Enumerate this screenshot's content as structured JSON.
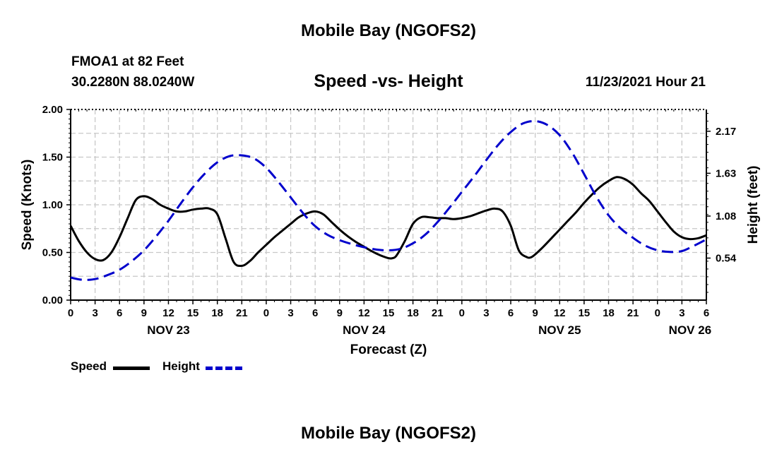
{
  "header": {
    "title": "Mobile Bay (NGOFS2)",
    "station": "FMOA1 at 82 Feet",
    "coords": "30.2280N  88.0240W",
    "subtitle": "Speed -vs- Height",
    "datetime": "11/23/2021 Hour 21"
  },
  "footer": {
    "title": "Mobile Bay (NGOFS2)"
  },
  "legend": {
    "speed_label": "Speed",
    "height_label": "Height"
  },
  "colors": {
    "speed": "#000000",
    "height": "#0000cc",
    "grid": "#c8c8c8"
  },
  "chart_data": {
    "type": "line",
    "title": "Speed -vs- Height",
    "xlabel": "Forecast (Z)",
    "ylabel": "Speed (Knots)",
    "y2label": "Height (feet)",
    "x_range_hours": [
      0,
      78
    ],
    "ylim": [
      0,
      2.0
    ],
    "y2lim": [
      0,
      2.45
    ],
    "x_ticks": [
      {
        "h": 0,
        "label": "0"
      },
      {
        "h": 3,
        "label": "3"
      },
      {
        "h": 6,
        "label": "6"
      },
      {
        "h": 9,
        "label": "9"
      },
      {
        "h": 12,
        "label": "12"
      },
      {
        "h": 15,
        "label": "15"
      },
      {
        "h": 18,
        "label": "18"
      },
      {
        "h": 21,
        "label": "21"
      },
      {
        "h": 24,
        "label": "0"
      },
      {
        "h": 27,
        "label": "3"
      },
      {
        "h": 30,
        "label": "6"
      },
      {
        "h": 33,
        "label": "9"
      },
      {
        "h": 36,
        "label": "12"
      },
      {
        "h": 39,
        "label": "15"
      },
      {
        "h": 42,
        "label": "18"
      },
      {
        "h": 45,
        "label": "21"
      },
      {
        "h": 48,
        "label": "0"
      },
      {
        "h": 51,
        "label": "3"
      },
      {
        "h": 54,
        "label": "6"
      },
      {
        "h": 57,
        "label": "9"
      },
      {
        "h": 60,
        "label": "12"
      },
      {
        "h": 63,
        "label": "15"
      },
      {
        "h": 66,
        "label": "18"
      },
      {
        "h": 69,
        "label": "21"
      },
      {
        "h": 72,
        "label": "0"
      },
      {
        "h": 75,
        "label": "3"
      },
      {
        "h": 78,
        "label": "6"
      }
    ],
    "date_labels": [
      {
        "h": 12,
        "label": "NOV 23"
      },
      {
        "h": 36,
        "label": "NOV 24"
      },
      {
        "h": 60,
        "label": "NOV 25"
      },
      {
        "h": 76,
        "label": "NOV 26"
      }
    ],
    "y_ticks": [
      {
        "v": 0.0,
        "label": "0.00"
      },
      {
        "v": 0.5,
        "label": "0.50"
      },
      {
        "v": 1.0,
        "label": "1.00"
      },
      {
        "v": 1.5,
        "label": "1.50"
      },
      {
        "v": 2.0,
        "label": "2.00"
      }
    ],
    "y2_ticks": [
      {
        "v": 0.54,
        "label": "0.54"
      },
      {
        "v": 1.08,
        "label": "1.08"
      },
      {
        "v": 1.63,
        "label": "1.63"
      },
      {
        "v": 2.17,
        "label": "2.17"
      }
    ],
    "series": [
      {
        "name": "Speed",
        "axis": "left",
        "style": "solid",
        "points": [
          [
            0,
            0.78
          ],
          [
            1,
            0.62
          ],
          [
            2,
            0.5
          ],
          [
            3,
            0.43
          ],
          [
            4,
            0.42
          ],
          [
            5,
            0.5
          ],
          [
            6,
            0.66
          ],
          [
            7,
            0.86
          ],
          [
            8,
            1.05
          ],
          [
            9,
            1.09
          ],
          [
            10,
            1.06
          ],
          [
            11,
            1.0
          ],
          [
            12,
            0.96
          ],
          [
            13,
            0.93
          ],
          [
            14,
            0.93
          ],
          [
            15,
            0.95
          ],
          [
            16,
            0.96
          ],
          [
            17,
            0.96
          ],
          [
            18,
            0.9
          ],
          [
            19,
            0.65
          ],
          [
            20,
            0.4
          ],
          [
            21,
            0.36
          ],
          [
            22,
            0.41
          ],
          [
            23,
            0.5
          ],
          [
            24,
            0.58
          ],
          [
            25,
            0.66
          ],
          [
            26,
            0.73
          ],
          [
            27,
            0.8
          ],
          [
            28,
            0.87
          ],
          [
            29,
            0.91
          ],
          [
            30,
            0.93
          ],
          [
            31,
            0.9
          ],
          [
            32,
            0.82
          ],
          [
            33,
            0.74
          ],
          [
            34,
            0.67
          ],
          [
            35,
            0.61
          ],
          [
            36,
            0.56
          ],
          [
            37,
            0.51
          ],
          [
            38,
            0.47
          ],
          [
            39,
            0.44
          ],
          [
            39.5,
            0.44
          ],
          [
            40,
            0.47
          ],
          [
            41,
            0.62
          ],
          [
            42,
            0.8
          ],
          [
            43,
            0.87
          ],
          [
            44,
            0.87
          ],
          [
            45,
            0.86
          ],
          [
            46,
            0.86
          ],
          [
            47,
            0.85
          ],
          [
            48,
            0.86
          ],
          [
            49,
            0.88
          ],
          [
            50,
            0.91
          ],
          [
            51,
            0.94
          ],
          [
            52,
            0.96
          ],
          [
            53,
            0.93
          ],
          [
            54,
            0.78
          ],
          [
            55,
            0.52
          ],
          [
            56,
            0.45
          ],
          [
            56.5,
            0.45
          ],
          [
            57,
            0.48
          ],
          [
            58,
            0.56
          ],
          [
            59,
            0.65
          ],
          [
            60,
            0.74
          ],
          [
            61,
            0.83
          ],
          [
            62,
            0.92
          ],
          [
            63,
            1.02
          ],
          [
            64,
            1.11
          ],
          [
            65,
            1.19
          ],
          [
            66,
            1.25
          ],
          [
            67,
            1.29
          ],
          [
            68,
            1.27
          ],
          [
            69,
            1.21
          ],
          [
            70,
            1.12
          ],
          [
            71,
            1.04
          ],
          [
            72,
            0.93
          ],
          [
            73,
            0.82
          ],
          [
            74,
            0.72
          ],
          [
            75,
            0.66
          ],
          [
            76,
            0.64
          ],
          [
            77,
            0.65
          ],
          [
            78,
            0.68
          ]
        ]
      },
      {
        "name": "Height",
        "axis": "right",
        "style": "dashed",
        "points": [
          [
            0,
            0.29
          ],
          [
            1.5,
            0.26
          ],
          [
            3,
            0.27
          ],
          [
            4.5,
            0.32
          ],
          [
            6,
            0.39
          ],
          [
            7.5,
            0.5
          ],
          [
            9,
            0.64
          ],
          [
            10.5,
            0.82
          ],
          [
            12,
            1.02
          ],
          [
            13.5,
            1.24
          ],
          [
            15,
            1.45
          ],
          [
            16.5,
            1.63
          ],
          [
            18,
            1.77
          ],
          [
            19.5,
            1.85
          ],
          [
            21,
            1.86
          ],
          [
            22.5,
            1.82
          ],
          [
            24,
            1.7
          ],
          [
            25.5,
            1.52
          ],
          [
            27,
            1.32
          ],
          [
            28.5,
            1.12
          ],
          [
            30,
            0.95
          ],
          [
            31.5,
            0.84
          ],
          [
            33,
            0.77
          ],
          [
            34.5,
            0.72
          ],
          [
            36,
            0.68
          ],
          [
            37.5,
            0.65
          ],
          [
            39,
            0.64
          ],
          [
            40.5,
            0.66
          ],
          [
            42,
            0.73
          ],
          [
            43.5,
            0.84
          ],
          [
            45,
            1.0
          ],
          [
            46.5,
            1.19
          ],
          [
            48,
            1.39
          ],
          [
            49.5,
            1.59
          ],
          [
            51,
            1.8
          ],
          [
            52.5,
            2.0
          ],
          [
            54,
            2.16
          ],
          [
            55.5,
            2.27
          ],
          [
            57,
            2.3
          ],
          [
            58.5,
            2.25
          ],
          [
            60,
            2.12
          ],
          [
            61.5,
            1.9
          ],
          [
            63,
            1.62
          ],
          [
            64.5,
            1.33
          ],
          [
            66,
            1.09
          ],
          [
            67.5,
            0.92
          ],
          [
            69,
            0.8
          ],
          [
            70.5,
            0.7
          ],
          [
            72,
            0.64
          ],
          [
            73.5,
            0.62
          ],
          [
            75,
            0.63
          ],
          [
            76.5,
            0.7
          ],
          [
            78,
            0.78
          ]
        ]
      }
    ]
  }
}
